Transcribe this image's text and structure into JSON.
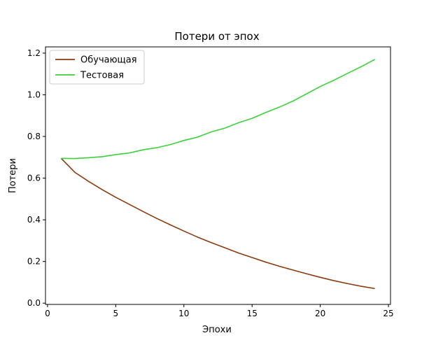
{
  "chart_data": {
    "type": "line",
    "title": "Потери от эпох",
    "xlabel": "Эпохи",
    "ylabel": "Потери",
    "xlim": [
      -0.15,
      25.15
    ],
    "ylim": [
      -0.006,
      1.23
    ],
    "xticks": [
      0,
      5,
      10,
      15,
      20,
      25
    ],
    "yticks": [
      0.0,
      0.2,
      0.4,
      0.6,
      0.8,
      1.0,
      1.2
    ],
    "grid": false,
    "legend_position": "top-left",
    "x": [
      1,
      2,
      3,
      4,
      5,
      6,
      7,
      8,
      9,
      10,
      11,
      12,
      13,
      14,
      15,
      16,
      17,
      18,
      19,
      20,
      21,
      22,
      23,
      24
    ],
    "series": [
      {
        "name": "Обучающая",
        "color": "#8b3a0e",
        "values": [
          0.695,
          0.628,
          0.585,
          0.545,
          0.508,
          0.474,
          0.44,
          0.407,
          0.376,
          0.346,
          0.317,
          0.291,
          0.266,
          0.241,
          0.219,
          0.197,
          0.177,
          0.159,
          0.141,
          0.124,
          0.108,
          0.094,
          0.081,
          0.07
        ]
      },
      {
        "name": "Тестовая",
        "color": "#3dd13d",
        "values": [
          0.695,
          0.694,
          0.698,
          0.703,
          0.713,
          0.721,
          0.736,
          0.746,
          0.761,
          0.781,
          0.797,
          0.822,
          0.84,
          0.866,
          0.887,
          0.915,
          0.941,
          0.97,
          1.005,
          1.04,
          1.07,
          1.103,
          1.135,
          1.17
        ]
      }
    ]
  }
}
